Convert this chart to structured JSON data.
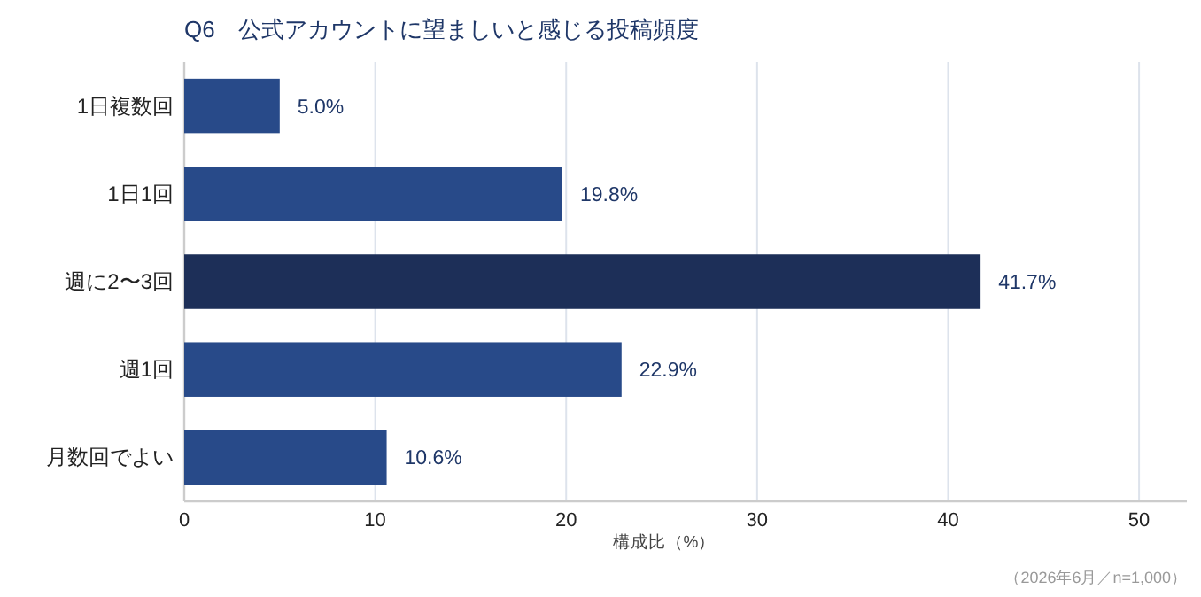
{
  "chart_data": {
    "type": "bar",
    "orientation": "horizontal",
    "title": "Q6　公式アカウントに望ましいと感じる投稿頻度",
    "xlabel": "構成比（%）",
    "categories": [
      "1日複数回",
      "1日1回",
      "週に2〜3回",
      "週1回",
      "月数回でよい"
    ],
    "values": [
      5.0,
      19.8,
      41.7,
      22.9,
      10.6
    ],
    "colors": [
      "#284a89",
      "#284a89",
      "#1d2f58",
      "#284a89",
      "#284a89"
    ],
    "value_labels": [
      "5.0%",
      "19.8%",
      "41.7%",
      "22.9%",
      "10.6%"
    ],
    "xlim": [
      0,
      52.5
    ],
    "xticks": [
      0,
      10,
      20,
      30,
      40,
      50
    ],
    "grid": "x",
    "annotations": [
      "（2026年6月／n=1,000）"
    ]
  }
}
